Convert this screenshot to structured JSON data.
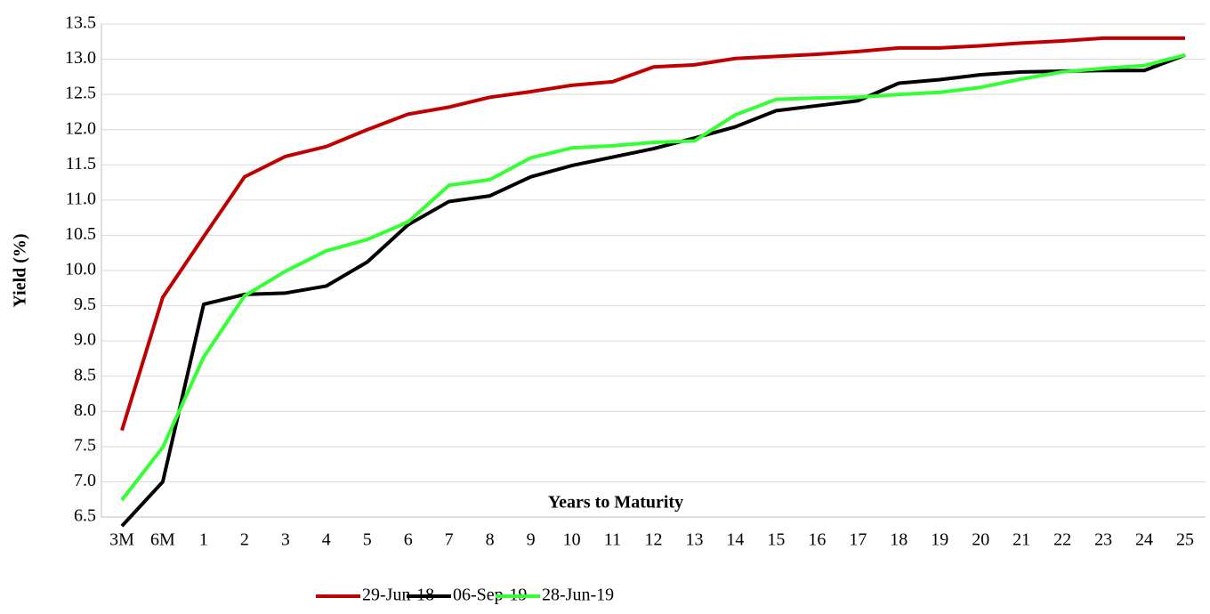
{
  "chart_data": {
    "type": "line",
    "x_label": "Years to Maturity",
    "y_label": "Yield (%)",
    "categories": [
      "3M",
      "6M",
      "1",
      "2",
      "3",
      "4",
      "5",
      "6",
      "7",
      "8",
      "9",
      "10",
      "11",
      "12",
      "13",
      "14",
      "15",
      "16",
      "17",
      "18",
      "19",
      "20",
      "21",
      "22",
      "23",
      "24",
      "25"
    ],
    "series": [
      {
        "name": "29-Jun-18",
        "color": "#c00000",
        "values": [
          7.73,
          9.62,
          10.48,
          11.33,
          11.62,
          11.76,
          12.0,
          12.22,
          12.32,
          12.46,
          12.54,
          12.63,
          12.68,
          12.89,
          12.92,
          13.01,
          13.04,
          13.07,
          13.11,
          13.16,
          13.16,
          13.19,
          13.23,
          13.26,
          13.3,
          13.3,
          13.3
        ]
      },
      {
        "name": "06-Sep-19",
        "color": "#000000",
        "values": [
          6.37,
          7.0,
          9.52,
          9.66,
          9.68,
          9.78,
          10.12,
          10.65,
          10.98,
          11.06,
          11.33,
          11.49,
          11.61,
          11.73,
          11.88,
          12.04,
          12.27,
          12.34,
          12.41,
          12.66,
          12.71,
          12.78,
          12.82,
          12.83,
          12.84,
          12.84,
          13.06
        ]
      },
      {
        "name": "28-Jun-19",
        "color": "#33ff33",
        "values": [
          6.74,
          7.49,
          8.77,
          9.64,
          9.99,
          10.28,
          10.44,
          10.69,
          11.21,
          11.29,
          11.6,
          11.74,
          11.77,
          11.82,
          11.84,
          12.21,
          12.43,
          12.45,
          12.46,
          12.5,
          12.53,
          12.6,
          12.72,
          12.82,
          12.87,
          12.91,
          13.06
        ]
      }
    ],
    "ylim": [
      6.5,
      13.5
    ],
    "yticks": [
      6.5,
      {
        "value": 7,
        "label": "7.0"
      },
      7.5,
      {
        "value": 8,
        "label": "8.0"
      },
      8.5,
      {
        "value": 9,
        "label": "9.0"
      },
      9.5,
      {
        "value": 10,
        "label": "10.0"
      },
      10.5,
      {
        "value": 11,
        "label": "11.0"
      },
      11.5,
      {
        "value": 12,
        "label": "12.0"
      },
      12.5,
      {
        "value": 13,
        "label": "13.0"
      },
      13.5
    ],
    "grid": true,
    "legend": "bottom"
  }
}
